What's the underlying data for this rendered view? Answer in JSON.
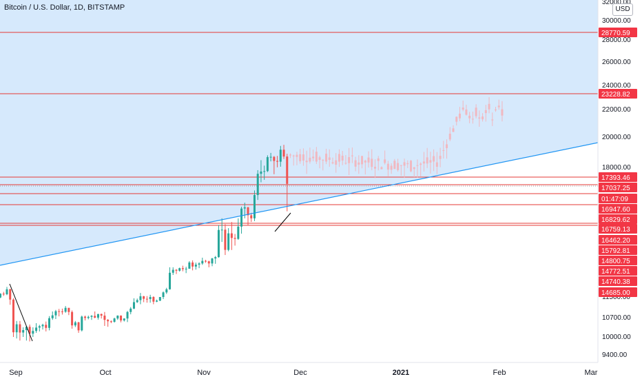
{
  "title": "Bitcoin / U.S. Dollar, 1D, BITSTAMP",
  "currency_label": "USD",
  "colors": {
    "up": "#26a69a",
    "down": "#ef5350",
    "projection": "#f1b8c0",
    "zone_fill": "#d6e9fc",
    "trendline": "#2196f3",
    "level_line": "#e53935",
    "label_bg": "#f23645"
  },
  "chart_data": {
    "type": "candlestick",
    "title": "Bitcoin / U.S. Dollar, 1D, BITSTAMP",
    "y_scale": "log",
    "y_ticks": [
      "32000.00",
      "30000.00",
      "28000.00",
      "26000.00",
      "24000.00",
      "22000.00",
      "20000.00",
      "18000.00",
      "10700.00",
      "10000.00",
      "9400.00"
    ],
    "obscured_tick": "11500.00",
    "x_ticks": [
      "Sep",
      "Oct",
      "Nov",
      "Dec",
      "2021",
      "Feb",
      "Mar"
    ],
    "bold_x_tick": "2021",
    "price_labels": [
      "28770.59",
      "23228.82",
      "17393.46",
      "17037.25",
      "01:47:09",
      "16947.60",
      "16829.62",
      "16759.13",
      "16462.20",
      "15792.81",
      "14800.75",
      "14772.51",
      "14740.38",
      "14685.00"
    ],
    "horizontal_levels": [
      28770.59,
      23228.82,
      17393.46,
      17037.25,
      16947.6,
      16829.62,
      16759.13,
      16462.2
    ],
    "candles_actual": [
      [
        "2020-08-28",
        11320,
        11560,
        11250,
        11500
      ],
      [
        "2020-08-29",
        11500,
        11580,
        11420,
        11480
      ],
      [
        "2020-08-30",
        11480,
        11700,
        11460,
        11680
      ],
      [
        "2020-08-31",
        11680,
        11780,
        11560,
        11650
      ],
      [
        "2020-09-01",
        11650,
        12050,
        11600,
        11920
      ],
      [
        "2020-09-02",
        11920,
        11950,
        11200,
        11400
      ],
      [
        "2020-09-03",
        11400,
        11450,
        10000,
        10170
      ],
      [
        "2020-09-04",
        10170,
        10580,
        9950,
        10460
      ],
      [
        "2020-09-05",
        10460,
        10580,
        9880,
        10160
      ],
      [
        "2020-09-06",
        10160,
        10350,
        10000,
        10250
      ],
      [
        "2020-09-07",
        10250,
        10400,
        9880,
        10370
      ],
      [
        "2020-09-08",
        10370,
        10450,
        9850,
        10120
      ],
      [
        "2020-09-09",
        10120,
        10350,
        10000,
        10220
      ],
      [
        "2020-09-10",
        10220,
        10500,
        10150,
        10340
      ],
      [
        "2020-09-11",
        10340,
        10440,
        10200,
        10390
      ],
      [
        "2020-09-12",
        10390,
        10480,
        10270,
        10440
      ],
      [
        "2020-09-13",
        10440,
        10560,
        10200,
        10330
      ],
      [
        "2020-09-14",
        10330,
        10760,
        10240,
        10680
      ],
      [
        "2020-09-15",
        10680,
        10940,
        10620,
        10790
      ],
      [
        "2020-09-16",
        10790,
        11000,
        10650,
        10950
      ],
      [
        "2020-09-17",
        10950,
        11040,
        10750,
        10940
      ],
      [
        "2020-09-18",
        10940,
        11050,
        10820,
        10930
      ],
      [
        "2020-09-19",
        10930,
        11150,
        10890,
        11080
      ],
      [
        "2020-09-20",
        11080,
        11080,
        10800,
        10920
      ],
      [
        "2020-09-21",
        10920,
        10980,
        10300,
        10420
      ],
      [
        "2020-09-22",
        10420,
        10580,
        10360,
        10530
      ],
      [
        "2020-09-23",
        10530,
        10550,
        10150,
        10240
      ],
      [
        "2020-09-24",
        10240,
        10780,
        10200,
        10740
      ],
      [
        "2020-09-25",
        10740,
        10780,
        10600,
        10690
      ],
      [
        "2020-09-26",
        10690,
        10780,
        10640,
        10730
      ],
      [
        "2020-09-27",
        10730,
        10800,
        10620,
        10770
      ],
      [
        "2020-09-28",
        10770,
        10940,
        10680,
        10700
      ],
      [
        "2020-09-29",
        10700,
        10850,
        10630,
        10840
      ],
      [
        "2020-09-30",
        10840,
        10860,
        10670,
        10780
      ],
      [
        "2020-10-01",
        10780,
        10920,
        10400,
        10620
      ],
      [
        "2020-10-02",
        10620,
        10650,
        10370,
        10570
      ],
      [
        "2020-10-03",
        10570,
        10600,
        10500,
        10550
      ],
      [
        "2020-10-04",
        10550,
        10700,
        10520,
        10670
      ],
      [
        "2020-10-05",
        10670,
        10790,
        10620,
        10780
      ],
      [
        "2020-10-06",
        10780,
        10790,
        10530,
        10600
      ],
      [
        "2020-10-07",
        10600,
        10680,
        10560,
        10670
      ],
      [
        "2020-10-08",
        10670,
        10960,
        10540,
        10920
      ],
      [
        "2020-10-09",
        10920,
        11110,
        10830,
        11050
      ],
      [
        "2020-10-10",
        11050,
        11450,
        11030,
        11300
      ],
      [
        "2020-10-11",
        11300,
        11440,
        11270,
        11380
      ],
      [
        "2020-10-12",
        11380,
        11720,
        11220,
        11540
      ],
      [
        "2020-10-13",
        11540,
        11560,
        11300,
        11430
      ],
      [
        "2020-10-14",
        11430,
        11550,
        11280,
        11420
      ],
      [
        "2020-10-15",
        11420,
        11620,
        11280,
        11500
      ],
      [
        "2020-10-16",
        11500,
        11540,
        11220,
        11320
      ],
      [
        "2020-10-17",
        11320,
        11400,
        11300,
        11360
      ],
      [
        "2020-10-18",
        11360,
        11500,
        11340,
        11500
      ],
      [
        "2020-10-19",
        11500,
        11800,
        11420,
        11750
      ],
      [
        "2020-10-20",
        11750,
        12000,
        11670,
        11920
      ],
      [
        "2020-10-21",
        11920,
        13200,
        11900,
        12820
      ],
      [
        "2020-10-22",
        12820,
        13200,
        12700,
        12980
      ],
      [
        "2020-10-23",
        12980,
        13030,
        12750,
        12930
      ],
      [
        "2020-10-24",
        12930,
        13170,
        12880,
        13120
      ],
      [
        "2020-10-25",
        13120,
        13350,
        12900,
        13030
      ],
      [
        "2020-10-26",
        13030,
        13250,
        12800,
        13070
      ],
      [
        "2020-10-27",
        13070,
        13780,
        13050,
        13650
      ],
      [
        "2020-10-28",
        13650,
        13850,
        12950,
        13270
      ],
      [
        "2020-10-29",
        13270,
        13640,
        12990,
        13450
      ],
      [
        "2020-10-30",
        13450,
        13670,
        13120,
        13560
      ],
      [
        "2020-10-31",
        13560,
        14100,
        13430,
        13800
      ],
      [
        "2020-11-01",
        13800,
        13900,
        13620,
        13760
      ],
      [
        "2020-11-02",
        13760,
        13820,
        13200,
        13560
      ],
      [
        "2020-11-03",
        13560,
        14080,
        13300,
        14030
      ],
      [
        "2020-11-04",
        14030,
        14260,
        13530,
        14150
      ],
      [
        "2020-11-05",
        14150,
        15750,
        14100,
        15590
      ],
      [
        "2020-11-06",
        15590,
        15970,
        15200,
        15600
      ],
      [
        "2020-11-07",
        15600,
        15780,
        14350,
        14830
      ],
      [
        "2020-11-08",
        14830,
        15650,
        14700,
        15480
      ],
      [
        "2020-11-09",
        15480,
        15850,
        14820,
        15330
      ],
      [
        "2020-11-10",
        15330,
        15460,
        15080,
        15300
      ],
      [
        "2020-11-11",
        15300,
        15970,
        15270,
        15700
      ],
      [
        "2020-11-12",
        15700,
        16350,
        15470,
        16290
      ],
      [
        "2020-11-13",
        16290,
        16480,
        15970,
        16330
      ],
      [
        "2020-11-14",
        16330,
        16340,
        15730,
        16070
      ],
      [
        "2020-11-15",
        16070,
        16150,
        15850,
        15970
      ],
      [
        "2020-11-16",
        15970,
        16880,
        15880,
        16730
      ],
      [
        "2020-11-17",
        16730,
        17860,
        16570,
        17670
      ],
      [
        "2020-11-18",
        17670,
        18480,
        17230,
        17790
      ],
      [
        "2020-11-19",
        17790,
        18120,
        17360,
        17810
      ],
      [
        "2020-11-20",
        17810,
        18800,
        17760,
        18680
      ],
      [
        "2020-11-21",
        18680,
        18960,
        18400,
        18700
      ],
      [
        "2020-11-22",
        18700,
        18750,
        17650,
        18430
      ],
      [
        "2020-11-23",
        18430,
        18760,
        18010,
        18380
      ],
      [
        "2020-11-24",
        18380,
        19420,
        18050,
        19170
      ],
      [
        "2020-11-25",
        19170,
        19490,
        18560,
        18720
      ],
      [
        "2020-11-26",
        18720,
        18900,
        16200,
        17150
      ]
    ],
    "candles_projection_from": "2020-11-27",
    "candles_projection_to": "2021-01-31",
    "projection_range": {
      "low": 17000,
      "high": 23500
    }
  }
}
